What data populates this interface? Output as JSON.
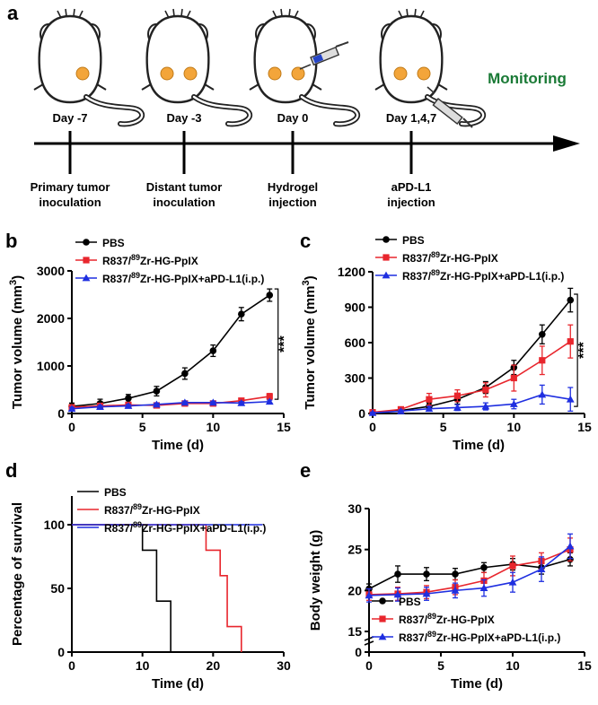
{
  "panel_a": {
    "label": "a",
    "monitoring": "Monitoring",
    "stages": [
      {
        "day": "Day -7",
        "caption1": "Primary tumor",
        "caption2": "inoculation"
      },
      {
        "day": "Day -3",
        "caption1": "Distant tumor",
        "caption2": "inoculation"
      },
      {
        "day": "Day 0",
        "caption1": "Hydrogel",
        "caption2": "injection"
      },
      {
        "day": "Day 1,4,7",
        "caption1": "aPD-L1",
        "caption2": "injection"
      }
    ]
  },
  "legend_names": {
    "pbs": "PBS",
    "rz_prefix": "R837/",
    "rz_sup": "89",
    "rz_suffix": "Zr-HG-PpIX",
    "rz_apd_suffix": "Zr-HG-PpIX+aPD-L1(i.p.)"
  },
  "colors": {
    "pbs": "#000000",
    "rz": "#e8262d",
    "rzapd": "#1f2fe0",
    "monitoring": "#1a7a36"
  },
  "chart_data": [
    {
      "panel": "b",
      "type": "line",
      "title": "",
      "xlabel": "Time (d)",
      "ylabel": "Tumor volume (mm",
      "ylabel_sup": "3",
      "ylabel_end": ")",
      "x": [
        0,
        2,
        4,
        6,
        8,
        10,
        12,
        14
      ],
      "xlim": [
        0,
        15
      ],
      "ylim": [
        0,
        3000
      ],
      "xticks": [
        0,
        5,
        10,
        15
      ],
      "yticks": [
        0,
        1000,
        2000,
        3000
      ],
      "significance": "***",
      "series": [
        {
          "name": "PBS",
          "key": "pbs",
          "values": [
            150,
            210,
            320,
            470,
            840,
            1320,
            2090,
            2490
          ],
          "err": [
            70,
            90,
            80,
            100,
            120,
            120,
            140,
            130
          ]
        },
        {
          "name": "R837/89Zr-HG-PpIX",
          "key": "rz",
          "values": [
            130,
            160,
            180,
            170,
            210,
            210,
            270,
            360
          ],
          "err": [
            40,
            40,
            40,
            40,
            40,
            40,
            40,
            60
          ]
        },
        {
          "name": "R837/89Zr-HG-PpIX+aPD-L1(i.p.)",
          "key": "rzapd",
          "values": [
            100,
            140,
            160,
            190,
            230,
            230,
            220,
            250
          ],
          "err": [
            30,
            30,
            30,
            30,
            30,
            30,
            30,
            30
          ]
        }
      ]
    },
    {
      "panel": "c",
      "type": "line",
      "title": "",
      "xlabel": "Time (d)",
      "ylabel": "Tumor volume (mm",
      "ylabel_sup": "3",
      "ylabel_end": ")",
      "x": [
        0,
        2,
        4,
        6,
        8,
        10,
        12,
        14
      ],
      "xlim": [
        0,
        15
      ],
      "ylim": [
        0,
        1200
      ],
      "xticks": [
        0,
        5,
        10,
        15
      ],
      "yticks": [
        0,
        300,
        600,
        900,
        1200
      ],
      "significance": "***",
      "series": [
        {
          "name": "PBS",
          "key": "pbs",
          "values": [
            10,
            25,
            60,
            120,
            220,
            390,
            670,
            960
          ],
          "err": [
            10,
            15,
            30,
            40,
            50,
            60,
            80,
            100
          ]
        },
        {
          "name": "R837/89Zr-HG-PpIX",
          "key": "rz",
          "values": [
            10,
            35,
            120,
            150,
            200,
            300,
            450,
            610
          ],
          "err": [
            10,
            20,
            50,
            50,
            60,
            110,
            120,
            140
          ]
        },
        {
          "name": "R837/89Zr-HG-PpIX+aPD-L1(i.p.)",
          "key": "rzapd",
          "values": [
            5,
            20,
            40,
            50,
            60,
            80,
            160,
            120
          ],
          "err": [
            5,
            10,
            20,
            25,
            30,
            40,
            80,
            100
          ]
        }
      ]
    },
    {
      "panel": "d",
      "type": "line",
      "title": "",
      "xlabel": "Time (d)",
      "ylabel": "Percentage of survival",
      "xlim": [
        0,
        30
      ],
      "ylim": [
        0,
        100
      ],
      "xticks": [
        0,
        10,
        20,
        30
      ],
      "yticks": [
        0,
        50,
        100
      ],
      "series": [
        {
          "name": "PBS",
          "key": "pbs",
          "step_x": [
            0,
            10,
            10,
            12,
            12,
            14,
            14
          ],
          "step_y": [
            100,
            100,
            80,
            80,
            40,
            40,
            0
          ]
        },
        {
          "name": "R837/89Zr-HG-PpIX",
          "key": "rz",
          "step_x": [
            0,
            19,
            19,
            21,
            21,
            22,
            22,
            23,
            23,
            24,
            24
          ],
          "step_y": [
            100,
            100,
            80,
            80,
            60,
            60,
            20,
            20,
            20,
            20,
            0
          ]
        },
        {
          "name": "R837/89Zr-HG-PpIX+aPD-L1(i.p.)",
          "key": "rzapd",
          "step_x": [
            0,
            27
          ],
          "step_y": [
            100,
            100
          ]
        }
      ]
    },
    {
      "panel": "e",
      "type": "line",
      "title": "",
      "xlabel": "Time (d)",
      "ylabel": "Body weight (g)",
      "x": [
        0,
        2,
        4,
        6,
        8,
        10,
        12,
        14
      ],
      "xlim": [
        0,
        15
      ],
      "ylim": [
        0,
        30
      ],
      "xticks": [
        0,
        5,
        10,
        15
      ],
      "yticks": [
        0,
        15,
        20,
        25,
        30
      ],
      "y_break": "axis starts at 0, then jumps to 15-30",
      "series": [
        {
          "name": "PBS",
          "key": "pbs",
          "values": [
            20.2,
            22.0,
            22.0,
            22.0,
            22.8,
            23.2,
            22.8,
            23.8
          ],
          "err": [
            0.6,
            1.0,
            0.8,
            0.7,
            0.6,
            0.7,
            0.8,
            0.8
          ]
        },
        {
          "name": "R837/89Zr-HG-PpIX",
          "key": "rz",
          "values": [
            19.5,
            19.6,
            19.8,
            20.4,
            21.2,
            23.0,
            23.6,
            25.0
          ],
          "err": [
            0.7,
            0.8,
            0.8,
            0.9,
            1.0,
            1.2,
            1.0,
            1.4
          ]
        },
        {
          "name": "R837/89Zr-HG-PpIX+aPD-L1(i.p.)",
          "key": "rzapd",
          "values": [
            19.4,
            19.5,
            19.6,
            20.0,
            20.3,
            21.0,
            22.6,
            25.4
          ],
          "err": [
            0.8,
            0.8,
            0.8,
            0.9,
            1.0,
            1.2,
            1.5,
            1.5
          ]
        }
      ]
    }
  ]
}
